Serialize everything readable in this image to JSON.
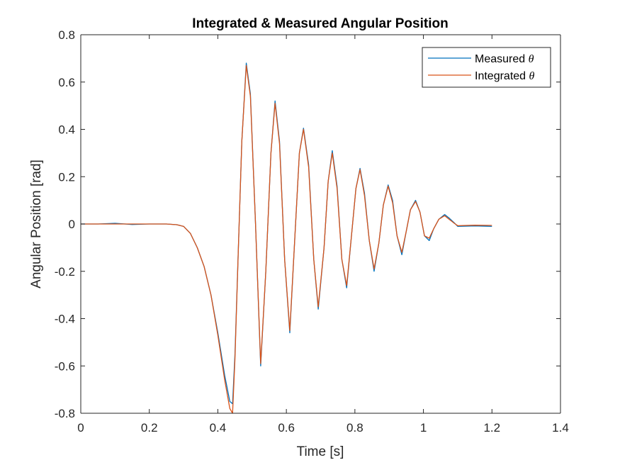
{
  "chart_data": {
    "type": "line",
    "title": "Integrated & Measured Angular Position",
    "xlabel": "Time [s]",
    "ylabel": "Angular Position [rad]",
    "xlim": [
      0,
      1.4
    ],
    "ylim": [
      -0.8,
      0.8
    ],
    "x_ticks": [
      0,
      0.2,
      0.4,
      0.6,
      0.8,
      1,
      1.2,
      1.4
    ],
    "y_ticks": [
      -0.8,
      -0.6,
      -0.4,
      -0.2,
      0,
      0.2,
      0.4,
      0.6,
      0.8
    ],
    "x_tick_labels": [
      "0",
      "0.2",
      "0.4",
      "0.6",
      "0.8",
      "1",
      "1.2",
      "1.4"
    ],
    "y_tick_labels": [
      "-0.8",
      "-0.6",
      "-0.4",
      "-0.2",
      "0",
      "0.2",
      "0.4",
      "0.6",
      "0.8"
    ],
    "grid": false,
    "legend": {
      "position": "top-right",
      "entries": [
        {
          "prefix": "Measured ",
          "symbol": "θ"
        },
        {
          "prefix": "Integrated ",
          "symbol": "θ"
        }
      ]
    },
    "series": [
      {
        "name": "Measured θ",
        "color": "#0072BD",
        "x": [
          0,
          0.05,
          0.1,
          0.15,
          0.2,
          0.25,
          0.28,
          0.3,
          0.32,
          0.34,
          0.36,
          0.38,
          0.4,
          0.42,
          0.435,
          0.443,
          0.45,
          0.46,
          0.47,
          0.483,
          0.495,
          0.51,
          0.525,
          0.54,
          0.555,
          0.567,
          0.58,
          0.595,
          0.61,
          0.625,
          0.638,
          0.65,
          0.665,
          0.68,
          0.693,
          0.71,
          0.722,
          0.734,
          0.748,
          0.762,
          0.776,
          0.79,
          0.803,
          0.815,
          0.828,
          0.842,
          0.856,
          0.87,
          0.883,
          0.897,
          0.91,
          0.923,
          0.937,
          0.95,
          0.962,
          0.977,
          0.99,
          1.003,
          1.017,
          1.03,
          1.045,
          1.062,
          1.075,
          1.09,
          1.1,
          1.15,
          1.2
        ],
        "y": [
          0,
          0,
          0.003,
          -0.002,
          0,
          0,
          -0.003,
          -0.01,
          -0.04,
          -0.1,
          -0.18,
          -0.3,
          -0.46,
          -0.64,
          -0.75,
          -0.76,
          -0.55,
          -0.1,
          0.35,
          0.68,
          0.55,
          0.0,
          -0.6,
          -0.2,
          0.3,
          0.52,
          0.35,
          -0.15,
          -0.46,
          -0.05,
          0.3,
          0.405,
          0.25,
          -0.15,
          -0.36,
          -0.1,
          0.18,
          0.31,
          0.16,
          -0.15,
          -0.27,
          -0.05,
          0.15,
          0.235,
          0.13,
          -0.07,
          -0.2,
          -0.08,
          0.08,
          0.165,
          0.1,
          -0.05,
          -0.13,
          -0.03,
          0.06,
          0.1,
          0.05,
          -0.05,
          -0.07,
          -0.02,
          0.02,
          0.04,
          0.025,
          0.005,
          -0.01,
          -0.008,
          -0.01
        ]
      },
      {
        "name": "Integrated θ",
        "color": "#D95319",
        "x": [
          0,
          0.05,
          0.1,
          0.15,
          0.2,
          0.25,
          0.28,
          0.3,
          0.32,
          0.34,
          0.36,
          0.38,
          0.4,
          0.42,
          0.435,
          0.443,
          0.45,
          0.46,
          0.47,
          0.483,
          0.495,
          0.51,
          0.525,
          0.54,
          0.555,
          0.567,
          0.58,
          0.595,
          0.61,
          0.625,
          0.638,
          0.65,
          0.665,
          0.68,
          0.693,
          0.71,
          0.722,
          0.734,
          0.748,
          0.762,
          0.776,
          0.79,
          0.803,
          0.815,
          0.828,
          0.842,
          0.856,
          0.87,
          0.883,
          0.897,
          0.91,
          0.923,
          0.937,
          0.95,
          0.962,
          0.977,
          0.99,
          1.003,
          1.017,
          1.03,
          1.045,
          1.062,
          1.075,
          1.09,
          1.1,
          1.15,
          1.2
        ],
        "y": [
          0,
          0,
          0,
          0,
          0,
          0,
          -0.003,
          -0.01,
          -0.04,
          -0.1,
          -0.18,
          -0.3,
          -0.47,
          -0.66,
          -0.78,
          -0.8,
          -0.57,
          -0.1,
          0.35,
          0.67,
          0.54,
          0.0,
          -0.59,
          -0.2,
          0.3,
          0.51,
          0.34,
          -0.15,
          -0.45,
          -0.05,
          0.3,
          0.4,
          0.24,
          -0.15,
          -0.35,
          -0.1,
          0.18,
          0.3,
          0.15,
          -0.15,
          -0.26,
          -0.05,
          0.15,
          0.23,
          0.12,
          -0.07,
          -0.19,
          -0.08,
          0.08,
          0.16,
          0.09,
          -0.05,
          -0.12,
          -0.03,
          0.06,
          0.095,
          0.05,
          -0.05,
          -0.06,
          -0.02,
          0.02,
          0.035,
          0.02,
          0.003,
          -0.007,
          -0.005,
          -0.006
        ]
      }
    ]
  }
}
